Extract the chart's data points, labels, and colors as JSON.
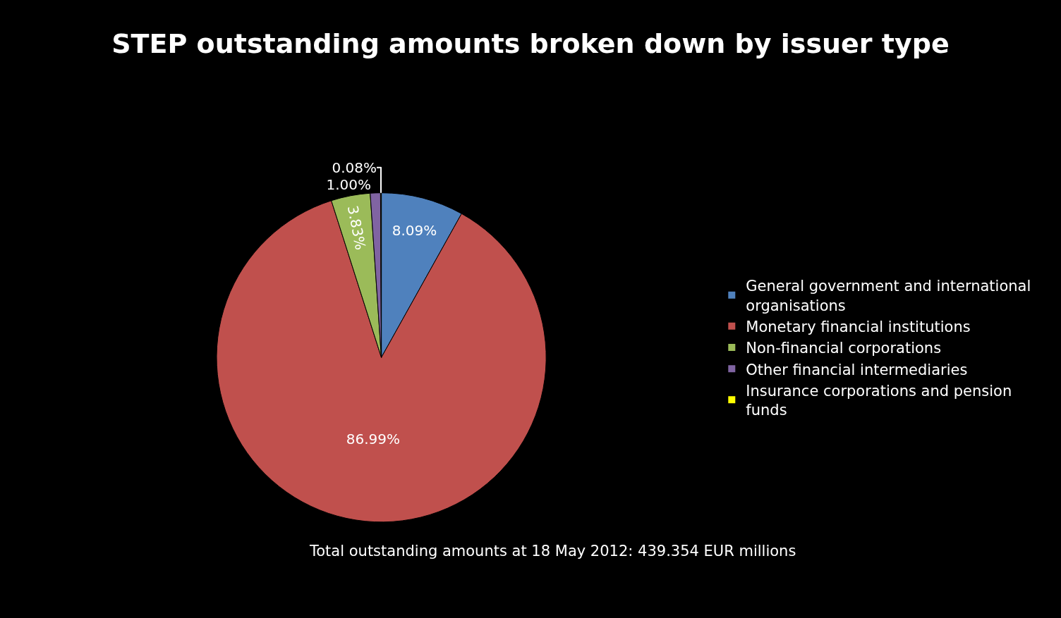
{
  "chart_data": {
    "type": "pie",
    "title": "STEP outstanding amounts broken down by issuer type",
    "categories": [
      "General government and international organisations",
      "Monetary financial institutions",
      "Non-financial corporations",
      "Other financial intermediaries",
      "Insurance corporations and pension funds"
    ],
    "values": [
      8.09,
      86.99,
      3.83,
      1.0,
      0.08
    ],
    "value_labels": [
      "8.09%",
      "86.99%",
      "3.83%",
      "1.00%",
      "0.08%"
    ],
    "colors": [
      "#4f81bd",
      "#c0504d",
      "#9bbb59",
      "#8064a2",
      "#ffff00"
    ],
    "legend": "right",
    "annotations": [
      "Total outstanding amounts at 18 May 2012: 439.354 EUR millions"
    ]
  }
}
